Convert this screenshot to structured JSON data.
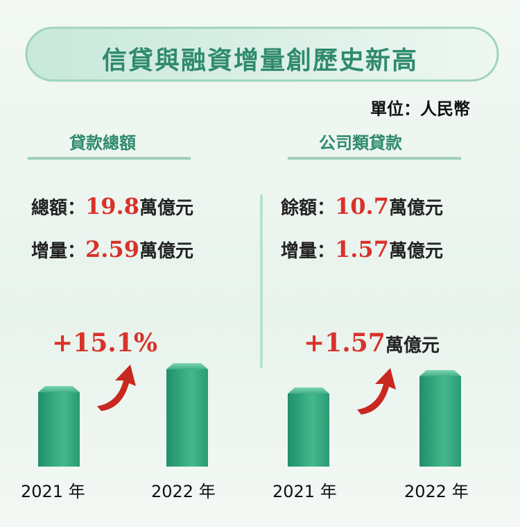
{
  "title": "信貸與融資增量創歷史新高",
  "unit_note": "單位：人民幣",
  "panels": [
    {
      "heading": "貸款總額",
      "rows": [
        {
          "label": "總額：",
          "value": "19.8",
          "unit": "萬億元"
        },
        {
          "label": "增量：",
          "value": "2.59",
          "unit": "萬億元"
        }
      ],
      "growth": {
        "value": "+15.1%"
      },
      "years": [
        "2021 年",
        "2022 年"
      ]
    },
    {
      "heading": "公司類貸款",
      "rows": [
        {
          "label": "餘額：",
          "value": "10.7",
          "unit": "萬億元"
        },
        {
          "label": "增量：",
          "value": "1.57",
          "unit": "萬億元"
        }
      ],
      "growth": {
        "value": "+1.57",
        "unit": "萬億元"
      },
      "years": [
        "2021 年",
        "2022 年"
      ]
    }
  ]
}
